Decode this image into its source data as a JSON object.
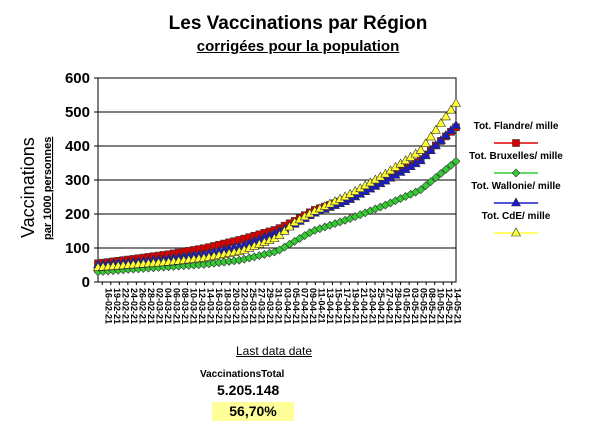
{
  "title": "Les Vaccinations par Région",
  "subtitle": "corrigées pour la population",
  "footer": {
    "x_caption": "Last data date",
    "total_label": "VaccinationsTotal",
    "total_value": "5.205.148",
    "percentage": "56,70%",
    "percentage_bg": "#ffff99"
  },
  "chart_data": {
    "type": "line",
    "title": "Les Vaccinations par Région",
    "subtitle": "corrigées pour la population",
    "ylabel": "Vaccinations",
    "ylabel_sub": "par 1000 personnes",
    "xlabel": "Last data date",
    "ylim": [
      0,
      600
    ],
    "yticks": [
      0,
      100,
      200,
      300,
      400,
      500,
      600
    ],
    "grid": "horizontal",
    "legend_position": "right",
    "x_tick_labels": [
      "16-02-21",
      "19-02-21",
      "22-02-21",
      "24-02-21",
      "26-02-21",
      "28-02-21",
      "02-03-21",
      "04-03-21",
      "06-03-21",
      "08-03-21",
      "10-03-21",
      "12-03-21",
      "14-03-21",
      "16-03-21",
      "18-03-21",
      "20-03-21",
      "22-03-21",
      "25-03-21",
      "27-03-21",
      "29-03-21",
      "31-03-21",
      "03-04-21",
      "05-04-21",
      "07-04-21",
      "09-04-21",
      "11-04-21",
      "13-04-21",
      "15-04-21",
      "17-04-21",
      "19-04-21",
      "21-04-21",
      "23-04-21",
      "25-04-21",
      "27-04-21",
      "29-04-21",
      "01-05-21",
      "03-05-21",
      "05-05-21",
      "08-05-21",
      "10-05-21",
      "12-05-21",
      "14-05-21"
    ],
    "series": [
      {
        "name": "Tot. Flandre/ mille",
        "color": "#dd0000",
        "marker": "square",
        "x_frac": [
          0,
          0.1,
          0.2,
          0.3,
          0.4,
          0.5,
          0.55,
          0.6,
          0.7,
          0.8,
          0.9,
          1.0
        ],
        "values": [
          55,
          68,
          82,
          100,
          125,
          155,
          180,
          210,
          245,
          300,
          360,
          455
        ]
      },
      {
        "name": "Tot. Bruxelles/ mille",
        "color": "#33cc33",
        "marker": "diamond",
        "x_frac": [
          0,
          0.1,
          0.2,
          0.3,
          0.4,
          0.5,
          0.55,
          0.6,
          0.7,
          0.8,
          0.9,
          1.0
        ],
        "values": [
          30,
          38,
          45,
          52,
          65,
          90,
          120,
          150,
          185,
          225,
          270,
          355
        ]
      },
      {
        "name": "Tot. Wallonie/ mille",
        "color": "#1a1acc",
        "marker": "triangle",
        "x_frac": [
          0,
          0.1,
          0.2,
          0.3,
          0.4,
          0.5,
          0.55,
          0.6,
          0.7,
          0.8,
          0.9,
          1.0
        ],
        "values": [
          50,
          58,
          68,
          82,
          105,
          145,
          170,
          200,
          240,
          295,
          355,
          460
        ]
      },
      {
        "name": "Tot. CdE/ mille",
        "color": "#ffff33",
        "marker": "triangle",
        "x_frac": [
          0,
          0.1,
          0.2,
          0.3,
          0.4,
          0.5,
          0.55,
          0.6,
          0.7,
          0.8,
          0.9,
          1.0
        ],
        "values": [
          42,
          50,
          58,
          70,
          90,
          130,
          175,
          205,
          255,
          315,
          385,
          525
        ]
      }
    ]
  }
}
